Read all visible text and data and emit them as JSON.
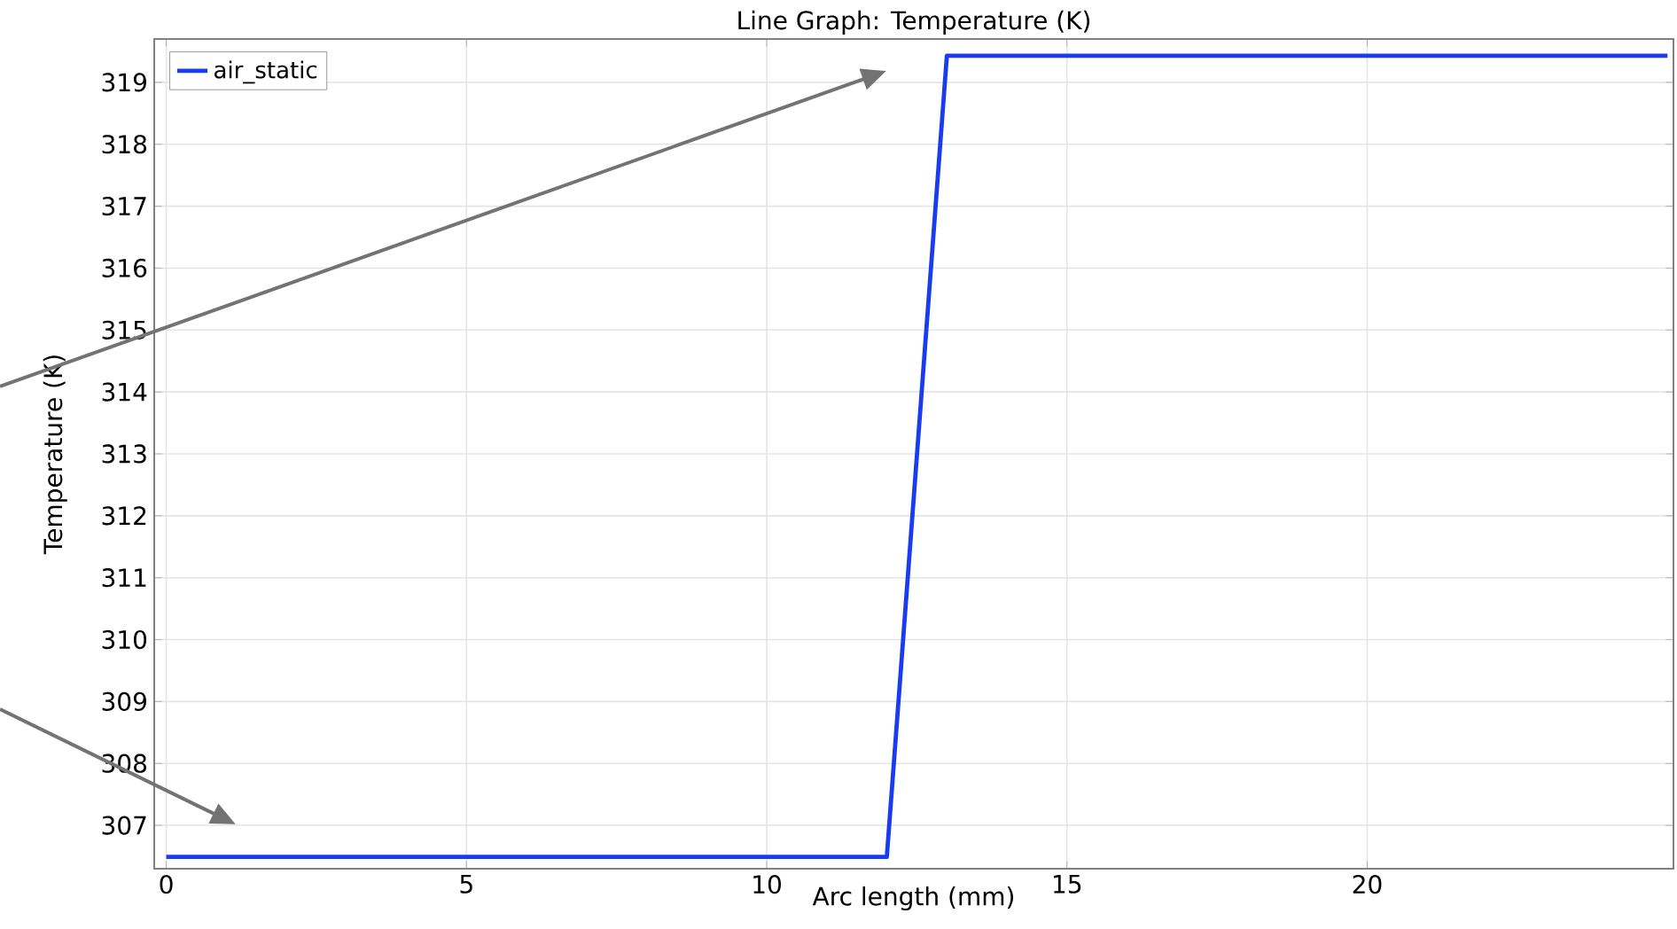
{
  "chart_data": {
    "type": "line",
    "title": "Line Graph: Temperature (K)",
    "xlabel": "Arc length (mm)",
    "ylabel": "Temperature (K)",
    "xlim": [
      -0.2,
      25.1
    ],
    "xticks": [
      0,
      5,
      10,
      15,
      20
    ],
    "ylim": [
      306.3,
      319.7
    ],
    "yticks": [
      307,
      308,
      309,
      310,
      311,
      312,
      313,
      314,
      315,
      316,
      317,
      318,
      319
    ],
    "grid": true,
    "legend": "top left",
    "line_style": "solid",
    "marker": "none",
    "series": [
      {
        "name": "air_static",
        "color": "#1a3cf0",
        "x": [
          0,
          12,
          13,
          25
        ],
        "values": [
          306.49,
          306.49,
          319.43,
          319.43
        ]
      }
    ]
  }
}
